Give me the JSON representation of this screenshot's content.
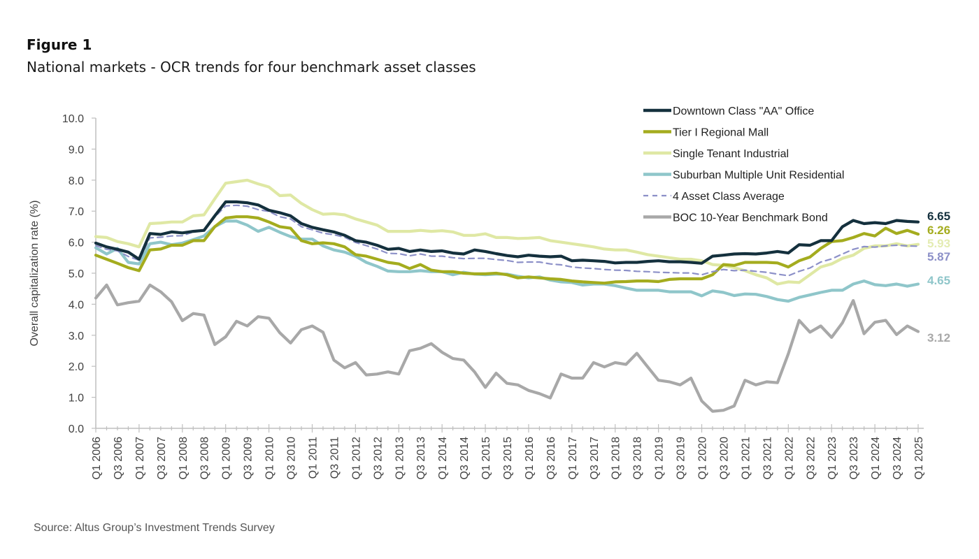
{
  "figure": {
    "label": "Figure 1",
    "title": "National markets - OCR trends for four benchmark asset classes",
    "source": "Source:  Altus Group’s Investment Trends Survey"
  },
  "chart_data": {
    "type": "line",
    "title": "National markets - OCR trends for four benchmark asset classes",
    "xlabel": "",
    "ylabel": "Overall capitalization rate (%)",
    "ylim": [
      0,
      10
    ],
    "yticks": [
      "0.0",
      "1.0",
      "2.0",
      "3.0",
      "4.0",
      "5.0",
      "6.0",
      "7.0",
      "8.0",
      "9.0",
      "10.0"
    ],
    "grid": false,
    "legend_position": "top-right",
    "x": [
      "Q1 2006",
      "Q2 2006",
      "Q3 2006",
      "Q4 2006",
      "Q1 2007",
      "Q2 2007",
      "Q3 2007",
      "Q4 2007",
      "Q1 2008",
      "Q2 2008",
      "Q3 2008",
      "Q4 2008",
      "Q1 2009",
      "Q2 2009",
      "Q3 2009",
      "Q4 2009",
      "Q1 2010",
      "Q2 2010",
      "Q3 2010",
      "Q4 2010",
      "Q1 2011",
      "Q2 2011",
      "Q3 2011",
      "Q4 2011",
      "Q1 2012",
      "Q2 2012",
      "Q3 2012",
      "Q4 2012",
      "Q1 2013",
      "Q2 2013",
      "Q3 2013",
      "Q4 2013",
      "Q1 2014",
      "Q2 2014",
      "Q3 2014",
      "Q4 2014",
      "Q1 2015",
      "Q2 2015",
      "Q3 2015",
      "Q4 2015",
      "Q1 2016",
      "Q2 2016",
      "Q3 2016",
      "Q4 2016",
      "Q1 2017",
      "Q2 2017",
      "Q3 2017",
      "Q4 2017",
      "Q1 2018",
      "Q2 2018",
      "Q3 2018",
      "Q4 2018",
      "Q1 2019",
      "Q2 2019",
      "Q3 2019",
      "Q4 2019",
      "Q1 2020",
      "Q2 2020",
      "Q3 2020",
      "Q4 2020",
      "Q1 2021",
      "Q2 2021",
      "Q3 2021",
      "Q4 2021",
      "Q1 2022",
      "Q2 2022",
      "Q3 2022",
      "Q4 2022",
      "Q1 2023",
      "Q2 2023",
      "Q3 2023",
      "Q4 2023",
      "Q1 2024",
      "Q2 2024",
      "Q3 2024",
      "Q4 2024",
      "Q1 2025"
    ],
    "x_tick_labels": [
      "Q1 2006",
      "Q3 2006",
      "Q1 2007",
      "Q3 2007",
      "Q1 2008",
      "Q3 2008",
      "Q1 2009",
      "Q3 2009",
      "Q1 2010",
      "Q3 2010",
      "Q1 2011",
      "Q3 2011",
      "Q1 2012",
      "Q3 2012",
      "Q1 2013",
      "Q3 2013",
      "Q1 2014",
      "Q3 2014",
      "Q1 2015",
      "Q3 2015",
      "Q1 2016",
      "Q3 2016",
      "Q1 2017",
      "Q3 2017",
      "Q1 2018",
      "Q3 2018",
      "Q1 2019",
      "Q3 2019",
      "Q1 2020",
      "Q3 2020",
      "Q1 2021",
      "Q3 2021",
      "Q1 2022",
      "Q3 2022",
      "Q1 2023",
      "Q3 2023",
      "Q1 2024",
      "Q3 2024",
      "Q1 2025"
    ],
    "series": [
      {
        "name": "Downtown Class \"AA\" Office",
        "color": "#14303d",
        "style": "solid",
        "end_label": "6.65",
        "values": [
          5.97,
          5.85,
          5.77,
          5.68,
          5.45,
          6.28,
          6.25,
          6.33,
          6.3,
          6.35,
          6.38,
          6.85,
          7.3,
          7.3,
          7.27,
          7.2,
          7.03,
          6.95,
          6.85,
          6.6,
          6.48,
          6.4,
          6.33,
          6.22,
          6.05,
          6.0,
          5.9,
          5.77,
          5.8,
          5.7,
          5.75,
          5.7,
          5.72,
          5.65,
          5.62,
          5.75,
          5.7,
          5.63,
          5.57,
          5.53,
          5.58,
          5.55,
          5.53,
          5.55,
          5.4,
          5.42,
          5.4,
          5.38,
          5.33,
          5.35,
          5.35,
          5.38,
          5.4,
          5.37,
          5.37,
          5.35,
          5.32,
          5.55,
          5.58,
          5.62,
          5.63,
          5.62,
          5.65,
          5.7,
          5.65,
          5.92,
          5.9,
          6.05,
          6.05,
          6.5,
          6.7,
          6.6,
          6.63,
          6.6,
          6.7,
          6.67,
          6.65
        ]
      },
      {
        "name": "Tier I Regional Mall",
        "color": "#a4ac1e",
        "style": "solid",
        "end_label": "6.26",
        "values": [
          5.58,
          5.45,
          5.32,
          5.18,
          5.08,
          5.75,
          5.78,
          5.9,
          5.9,
          6.05,
          6.05,
          6.5,
          6.78,
          6.82,
          6.82,
          6.78,
          6.65,
          6.5,
          6.45,
          6.05,
          5.95,
          5.98,
          5.95,
          5.85,
          5.6,
          5.55,
          5.45,
          5.35,
          5.3,
          5.15,
          5.28,
          5.1,
          5.05,
          5.05,
          5.0,
          4.98,
          4.98,
          5.0,
          4.95,
          4.85,
          4.88,
          4.85,
          4.82,
          4.8,
          4.75,
          4.72,
          4.7,
          4.68,
          4.72,
          4.73,
          4.75,
          4.75,
          4.73,
          4.8,
          4.82,
          4.82,
          4.82,
          4.95,
          5.28,
          5.25,
          5.35,
          5.35,
          5.35,
          5.33,
          5.2,
          5.4,
          5.52,
          5.8,
          6.02,
          6.05,
          6.15,
          6.28,
          6.2,
          6.45,
          6.28,
          6.38,
          6.26
        ]
      },
      {
        "name": "Single Tenant Industrial",
        "color": "#dfe8a4",
        "style": "solid",
        "end_label": "5.93",
        "values": [
          6.18,
          6.15,
          6.02,
          5.95,
          5.85,
          6.6,
          6.62,
          6.65,
          6.65,
          6.85,
          6.88,
          7.4,
          7.9,
          7.95,
          8.0,
          7.88,
          7.78,
          7.5,
          7.52,
          7.25,
          7.05,
          6.9,
          6.92,
          6.88,
          6.75,
          6.65,
          6.55,
          6.35,
          6.35,
          6.35,
          6.38,
          6.35,
          6.37,
          6.33,
          6.22,
          6.22,
          6.27,
          6.15,
          6.15,
          6.12,
          6.13,
          6.15,
          6.05,
          6.0,
          5.95,
          5.9,
          5.85,
          5.78,
          5.75,
          5.75,
          5.68,
          5.6,
          5.55,
          5.5,
          5.45,
          5.45,
          5.4,
          5.28,
          5.25,
          5.18,
          5.08,
          4.95,
          4.85,
          4.65,
          4.72,
          4.7,
          4.95,
          5.2,
          5.3,
          5.48,
          5.58,
          5.8,
          5.88,
          5.88,
          5.95,
          5.88,
          5.93
        ]
      },
      {
        "name": "Suburban Multiple Unit Residential",
        "color": "#8fc6ca",
        "style": "solid",
        "end_label": "4.65",
        "values": [
          5.82,
          5.62,
          5.8,
          5.35,
          5.3,
          5.95,
          6.0,
          5.92,
          5.97,
          6.08,
          6.2,
          6.5,
          6.68,
          6.68,
          6.55,
          6.35,
          6.48,
          6.32,
          6.18,
          6.1,
          6.1,
          5.88,
          5.75,
          5.68,
          5.55,
          5.35,
          5.22,
          5.07,
          5.05,
          5.05,
          5.08,
          5.05,
          5.05,
          4.95,
          5.03,
          4.97,
          4.95,
          4.97,
          4.97,
          4.9,
          4.85,
          4.88,
          4.78,
          4.72,
          4.7,
          4.62,
          4.65,
          4.65,
          4.6,
          4.52,
          4.45,
          4.45,
          4.45,
          4.4,
          4.4,
          4.4,
          4.27,
          4.43,
          4.38,
          4.28,
          4.33,
          4.32,
          4.25,
          4.15,
          4.1,
          4.22,
          4.3,
          4.38,
          4.45,
          4.45,
          4.65,
          4.75,
          4.63,
          4.6,
          4.65,
          4.58,
          4.65
        ]
      },
      {
        "name": "4 Asset Class Average",
        "color": "#8c90c8",
        "style": "dashed",
        "end_label": "5.87",
        "values": [
          5.89,
          5.77,
          5.72,
          5.54,
          5.42,
          6.14,
          6.16,
          6.2,
          6.21,
          6.33,
          6.38,
          6.81,
          7.17,
          7.19,
          7.16,
          7.05,
          6.99,
          6.82,
          6.75,
          6.5,
          6.4,
          6.29,
          6.24,
          6.16,
          5.99,
          5.89,
          5.78,
          5.64,
          5.63,
          5.56,
          5.62,
          5.55,
          5.55,
          5.5,
          5.47,
          5.48,
          5.48,
          5.44,
          5.41,
          5.35,
          5.36,
          5.36,
          5.3,
          5.27,
          5.2,
          5.17,
          5.15,
          5.12,
          5.1,
          5.09,
          5.06,
          5.05,
          5.03,
          5.02,
          5.01,
          5.01,
          4.95,
          5.05,
          5.12,
          5.08,
          5.1,
          5.06,
          5.03,
          4.97,
          4.92,
          5.06,
          5.17,
          5.36,
          5.46,
          5.62,
          5.77,
          5.86,
          5.84,
          5.88,
          5.9,
          5.88,
          5.87
        ]
      },
      {
        "name": "BOC 10-Year Benchmark Bond",
        "color": "#a8a8a8",
        "style": "solid",
        "end_label": "3.12",
        "values": [
          4.2,
          4.62,
          3.98,
          4.05,
          4.1,
          4.62,
          4.4,
          4.08,
          3.47,
          3.7,
          3.65,
          2.7,
          2.95,
          3.45,
          3.3,
          3.6,
          3.55,
          3.08,
          2.75,
          3.18,
          3.3,
          3.1,
          2.2,
          1.95,
          2.12,
          1.72,
          1.75,
          1.82,
          1.75,
          2.5,
          2.58,
          2.73,
          2.45,
          2.25,
          2.2,
          1.82,
          1.32,
          1.78,
          1.45,
          1.4,
          1.22,
          1.12,
          0.98,
          1.75,
          1.62,
          1.62,
          2.12,
          1.98,
          2.12,
          2.06,
          2.42,
          1.98,
          1.55,
          1.5,
          1.4,
          1.62,
          0.88,
          0.55,
          0.58,
          0.72,
          1.55,
          1.4,
          1.5,
          1.47,
          2.4,
          3.48,
          3.1,
          3.3,
          2.93,
          3.4,
          4.12,
          3.05,
          3.42,
          3.48,
          3.02,
          3.3,
          3.12
        ]
      }
    ]
  }
}
